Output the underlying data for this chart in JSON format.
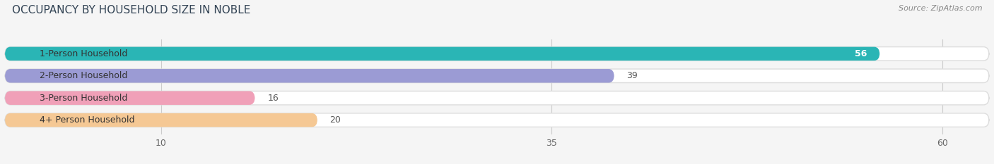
{
  "title": "OCCUPANCY BY HOUSEHOLD SIZE IN NOBLE",
  "source": "Source: ZipAtlas.com",
  "categories": [
    "1-Person Household",
    "2-Person Household",
    "3-Person Household",
    "4+ Person Household"
  ],
  "values": [
    56,
    39,
    16,
    20
  ],
  "bar_colors": [
    "#2ab5b5",
    "#9b9bd4",
    "#f0a0b8",
    "#f5c894"
  ],
  "bg_color_bars": [
    "#eafafc",
    "#eeeef8",
    "#fce8ef",
    "#fdf3e7"
  ],
  "xlim": [
    0,
    63
  ],
  "xticks": [
    10,
    35,
    60
  ],
  "label_fontsize": 9,
  "value_fontsize": 9,
  "title_fontsize": 11,
  "bar_height": 0.62,
  "background_color": "#ffffff",
  "figure_bg": "#f5f5f5"
}
